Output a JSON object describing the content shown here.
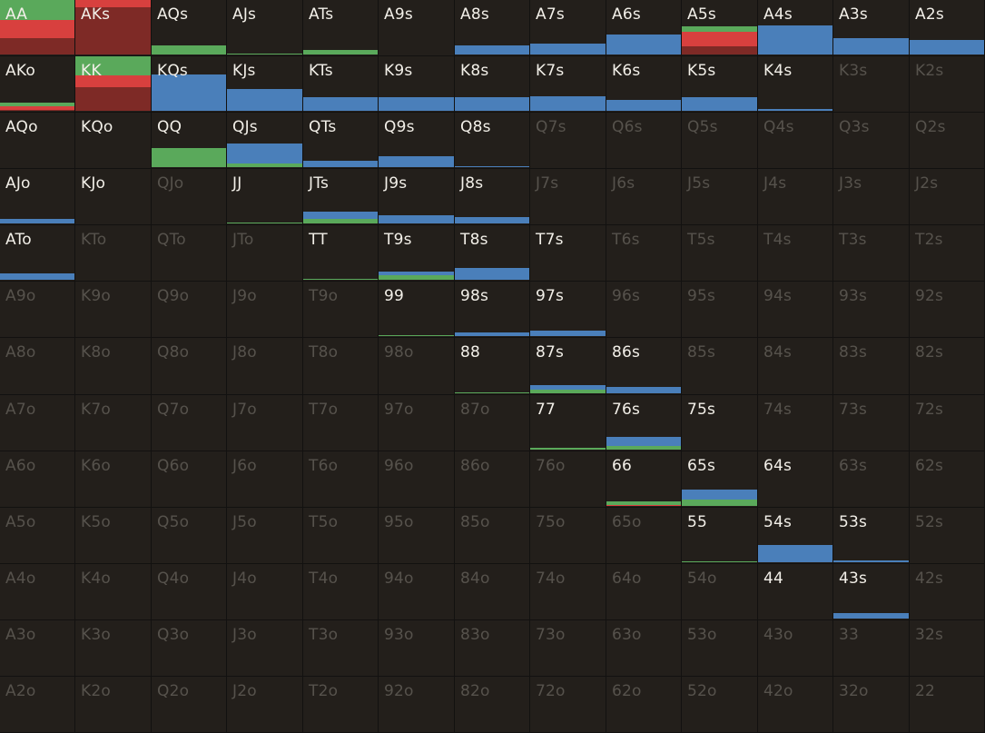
{
  "colors": {
    "raise": "#4a7fba",
    "call": "#5aa95b",
    "allin": "#d8403e",
    "allin_dark": "#7e2a26",
    "active_text": "#f2efe8",
    "inactive_text": "#56524c"
  },
  "cells": [
    [
      "AA",
      1,
      [
        [
          "allin_dark",
          0.3
        ],
        [
          "allin",
          0.32
        ],
        [
          "call",
          0.38
        ]
      ]
    ],
    [
      "AKs",
      1,
      [
        [
          "allin_dark",
          0.86
        ],
        [
          "allin",
          0.14
        ]
      ]
    ],
    [
      "AQs",
      1,
      [
        [
          "call",
          0.16
        ]
      ]
    ],
    [
      "AJs",
      1,
      [
        [
          "call",
          0.02
        ]
      ]
    ],
    [
      "ATs",
      1,
      [
        [
          "call",
          0.08
        ]
      ]
    ],
    [
      "A9s",
      1,
      []
    ],
    [
      "A8s",
      1,
      [
        [
          "raise",
          0.16
        ]
      ]
    ],
    [
      "A7s",
      1,
      [
        [
          "raise",
          0.19
        ]
      ]
    ],
    [
      "A6s",
      1,
      [
        [
          "raise",
          0.36
        ]
      ]
    ],
    [
      "A5s",
      1,
      [
        [
          "allin_dark",
          0.14
        ],
        [
          "allin",
          0.26
        ],
        [
          "call",
          0.1
        ]
      ]
    ],
    [
      "A4s",
      1,
      [
        [
          "raise",
          0.53
        ]
      ]
    ],
    [
      "A3s",
      1,
      [
        [
          "raise",
          0.3
        ]
      ]
    ],
    [
      "A2s",
      1,
      [
        [
          "raise",
          0.27
        ]
      ]
    ],
    [
      "AKo",
      1,
      [
        [
          "allin_dark",
          0.02
        ],
        [
          "allin",
          0.06
        ],
        [
          "call",
          0.06
        ]
      ]
    ],
    [
      "KK",
      1,
      [
        [
          "allin_dark",
          0.43
        ],
        [
          "allin",
          0.21
        ],
        [
          "call",
          0.36
        ]
      ]
    ],
    [
      "KQs",
      1,
      [
        [
          "raise",
          0.66
        ]
      ]
    ],
    [
      "KJs",
      1,
      [
        [
          "raise",
          0.4
        ]
      ]
    ],
    [
      "KTs",
      1,
      [
        [
          "raise",
          0.24
        ]
      ]
    ],
    [
      "K9s",
      1,
      [
        [
          "raise",
          0.24
        ]
      ]
    ],
    [
      "K8s",
      1,
      [
        [
          "raise",
          0.24
        ]
      ]
    ],
    [
      "K7s",
      1,
      [
        [
          "raise",
          0.26
        ]
      ]
    ],
    [
      "K6s",
      1,
      [
        [
          "raise",
          0.19
        ]
      ]
    ],
    [
      "K5s",
      1,
      [
        [
          "raise",
          0.24
        ]
      ]
    ],
    [
      "K4s",
      1,
      [
        [
          "raise",
          0.04
        ]
      ]
    ],
    [
      "K3s",
      0,
      []
    ],
    [
      "K2s",
      0,
      []
    ],
    [
      "AQo",
      1,
      []
    ],
    [
      "KQo",
      1,
      []
    ],
    [
      "QQ",
      1,
      [
        [
          "call",
          0.34
        ]
      ]
    ],
    [
      "QJs",
      1,
      [
        [
          "call",
          0.06
        ],
        [
          "raise",
          0.36
        ]
      ]
    ],
    [
      "QTs",
      1,
      [
        [
          "raise",
          0.11
        ]
      ]
    ],
    [
      "Q9s",
      1,
      [
        [
          "raise",
          0.19
        ]
      ]
    ],
    [
      "Q8s",
      1,
      [
        [
          "raise",
          0.02
        ]
      ]
    ],
    [
      "Q7s",
      0,
      []
    ],
    [
      "Q6s",
      0,
      []
    ],
    [
      "Q5s",
      0,
      []
    ],
    [
      "Q4s",
      0,
      []
    ],
    [
      "Q3s",
      0,
      []
    ],
    [
      "Q2s",
      0,
      []
    ],
    [
      "AJo",
      1,
      [
        [
          "raise",
          0.08
        ]
      ]
    ],
    [
      "KJo",
      1,
      []
    ],
    [
      "QJo",
      0,
      []
    ],
    [
      "JJ",
      1,
      [
        [
          "call",
          0.02
        ]
      ]
    ],
    [
      "JTs",
      1,
      [
        [
          "call",
          0.08
        ],
        [
          "raise",
          0.13
        ]
      ]
    ],
    [
      "J9s",
      1,
      [
        [
          "raise",
          0.15
        ]
      ]
    ],
    [
      "J8s",
      1,
      [
        [
          "raise",
          0.11
        ]
      ]
    ],
    [
      "J7s",
      0,
      []
    ],
    [
      "J6s",
      0,
      []
    ],
    [
      "J5s",
      0,
      []
    ],
    [
      "J4s",
      0,
      []
    ],
    [
      "J3s",
      0,
      []
    ],
    [
      "J2s",
      0,
      []
    ],
    [
      "ATo",
      1,
      [
        [
          "raise",
          0.11
        ]
      ]
    ],
    [
      "KTo",
      0,
      []
    ],
    [
      "QTo",
      0,
      []
    ],
    [
      "JTo",
      0,
      []
    ],
    [
      "TT",
      1,
      [
        [
          "call",
          0.02
        ]
      ]
    ],
    [
      "T9s",
      1,
      [
        [
          "call",
          0.08
        ],
        [
          "raise",
          0.06
        ]
      ]
    ],
    [
      "T8s",
      1,
      [
        [
          "raise",
          0.21
        ]
      ]
    ],
    [
      "T7s",
      1,
      []
    ],
    [
      "T6s",
      0,
      []
    ],
    [
      "T5s",
      0,
      []
    ],
    [
      "T4s",
      0,
      []
    ],
    [
      "T3s",
      0,
      []
    ],
    [
      "T2s",
      0,
      []
    ],
    [
      "A9o",
      0,
      []
    ],
    [
      "K9o",
      0,
      []
    ],
    [
      "Q9o",
      0,
      []
    ],
    [
      "J9o",
      0,
      []
    ],
    [
      "T9o",
      0,
      []
    ],
    [
      "99",
      1,
      [
        [
          "call",
          0.02
        ]
      ]
    ],
    [
      "98s",
      1,
      [
        [
          "raise",
          0.06
        ]
      ]
    ],
    [
      "97s",
      1,
      [
        [
          "raise",
          0.1
        ]
      ]
    ],
    [
      "96s",
      0,
      []
    ],
    [
      "95s",
      0,
      []
    ],
    [
      "94s",
      0,
      []
    ],
    [
      "93s",
      0,
      []
    ],
    [
      "92s",
      0,
      []
    ],
    [
      "A8o",
      0,
      []
    ],
    [
      "K8o",
      0,
      []
    ],
    [
      "Q8o",
      0,
      []
    ],
    [
      "J8o",
      0,
      []
    ],
    [
      "T8o",
      0,
      []
    ],
    [
      "98o",
      0,
      []
    ],
    [
      "88",
      1,
      [
        [
          "call",
          0.02
        ]
      ]
    ],
    [
      "87s",
      1,
      [
        [
          "call",
          0.06
        ],
        [
          "raise",
          0.08
        ]
      ]
    ],
    [
      "86s",
      1,
      [
        [
          "raise",
          0.11
        ]
      ]
    ],
    [
      "85s",
      0,
      []
    ],
    [
      "84s",
      0,
      []
    ],
    [
      "83s",
      0,
      []
    ],
    [
      "82s",
      0,
      []
    ],
    [
      "A7o",
      0,
      []
    ],
    [
      "K7o",
      0,
      []
    ],
    [
      "Q7o",
      0,
      []
    ],
    [
      "J7o",
      0,
      []
    ],
    [
      "T7o",
      0,
      []
    ],
    [
      "97o",
      0,
      []
    ],
    [
      "87o",
      0,
      []
    ],
    [
      "77",
      1,
      [
        [
          "call",
          0.04
        ]
      ]
    ],
    [
      "76s",
      1,
      [
        [
          "call",
          0.06
        ],
        [
          "raise",
          0.16
        ]
      ]
    ],
    [
      "75s",
      1,
      []
    ],
    [
      "74s",
      0,
      []
    ],
    [
      "73s",
      0,
      []
    ],
    [
      "72s",
      0,
      []
    ],
    [
      "A6o",
      0,
      []
    ],
    [
      "K6o",
      0,
      []
    ],
    [
      "Q6o",
      0,
      []
    ],
    [
      "J6o",
      0,
      []
    ],
    [
      "T6o",
      0,
      []
    ],
    [
      "96o",
      0,
      []
    ],
    [
      "86o",
      0,
      []
    ],
    [
      "76o",
      0,
      []
    ],
    [
      "66",
      1,
      [
        [
          "allin",
          0.02
        ],
        [
          "call",
          0.06
        ]
      ]
    ],
    [
      "65s",
      1,
      [
        [
          "call",
          0.11
        ],
        [
          "raise",
          0.18
        ]
      ]
    ],
    [
      "64s",
      1,
      []
    ],
    [
      "63s",
      0,
      []
    ],
    [
      "62s",
      0,
      []
    ],
    [
      "A5o",
      0,
      []
    ],
    [
      "K5o",
      0,
      []
    ],
    [
      "Q5o",
      0,
      []
    ],
    [
      "J5o",
      0,
      []
    ],
    [
      "T5o",
      0,
      []
    ],
    [
      "95o",
      0,
      []
    ],
    [
      "85o",
      0,
      []
    ],
    [
      "75o",
      0,
      []
    ],
    [
      "65o",
      0,
      []
    ],
    [
      "55",
      1,
      [
        [
          "call",
          0.02
        ]
      ]
    ],
    [
      "54s",
      1,
      [
        [
          "raise",
          0.31
        ]
      ]
    ],
    [
      "53s",
      1,
      [
        [
          "raise",
          0.04
        ]
      ]
    ],
    [
      "52s",
      0,
      []
    ],
    [
      "A4o",
      0,
      []
    ],
    [
      "K4o",
      0,
      []
    ],
    [
      "Q4o",
      0,
      []
    ],
    [
      "J4o",
      0,
      []
    ],
    [
      "T4o",
      0,
      []
    ],
    [
      "94o",
      0,
      []
    ],
    [
      "84o",
      0,
      []
    ],
    [
      "74o",
      0,
      []
    ],
    [
      "64o",
      0,
      []
    ],
    [
      "54o",
      0,
      []
    ],
    [
      "44",
      1,
      []
    ],
    [
      "43s",
      1,
      [
        [
          "raise",
          0.1
        ]
      ]
    ],
    [
      "42s",
      0,
      []
    ],
    [
      "A3o",
      0,
      []
    ],
    [
      "K3o",
      0,
      []
    ],
    [
      "Q3o",
      0,
      []
    ],
    [
      "J3o",
      0,
      []
    ],
    [
      "T3o",
      0,
      []
    ],
    [
      "93o",
      0,
      []
    ],
    [
      "83o",
      0,
      []
    ],
    [
      "73o",
      0,
      []
    ],
    [
      "63o",
      0,
      []
    ],
    [
      "53o",
      0,
      []
    ],
    [
      "43o",
      0,
      []
    ],
    [
      "33",
      0,
      []
    ],
    [
      "32s",
      0,
      []
    ],
    [
      "A2o",
      0,
      []
    ],
    [
      "K2o",
      0,
      []
    ],
    [
      "Q2o",
      0,
      []
    ],
    [
      "J2o",
      0,
      []
    ],
    [
      "T2o",
      0,
      []
    ],
    [
      "92o",
      0,
      []
    ],
    [
      "82o",
      0,
      []
    ],
    [
      "72o",
      0,
      []
    ],
    [
      "62o",
      0,
      []
    ],
    [
      "52o",
      0,
      []
    ],
    [
      "42o",
      0,
      []
    ],
    [
      "32o",
      0,
      []
    ],
    [
      "22",
      0,
      []
    ]
  ]
}
